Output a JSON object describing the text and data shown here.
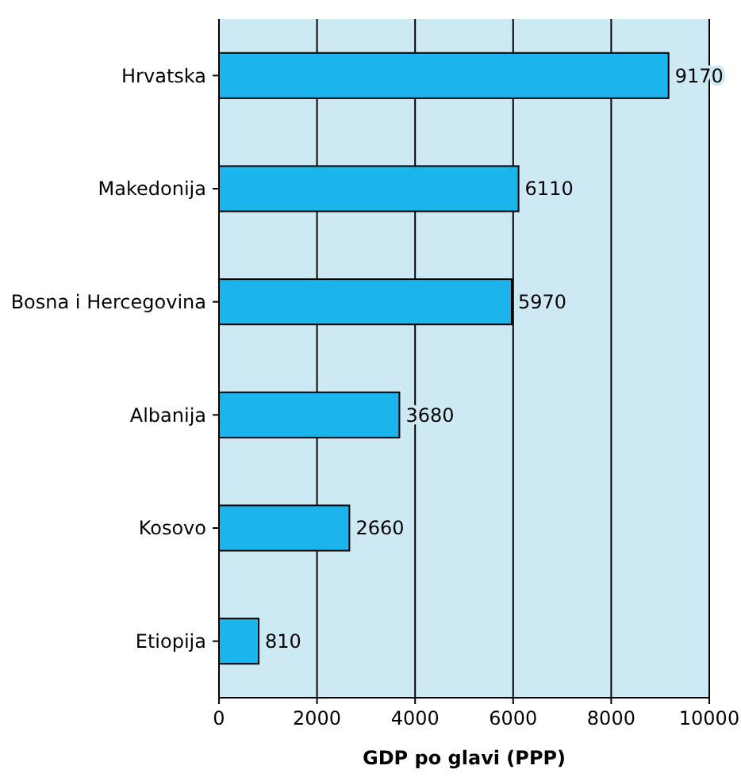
{
  "chart_data": {
    "type": "bar",
    "orientation": "horizontal",
    "xlabel": "GDP po glavi (PPP)",
    "categories": [
      "Hrvatska",
      "Makedonija",
      "Bosna i Hercegovina",
      "Albanija",
      "Kosovo",
      "Etiopija"
    ],
    "values": [
      9170,
      6110,
      5970,
      3680,
      2660,
      810
    ],
    "color": "#1cb4ec",
    "xlim": [
      0,
      10000
    ],
    "xticks": [
      0,
      2000,
      4000,
      6000,
      8000,
      10000
    ],
    "grid": "x",
    "data_labels": true
  }
}
